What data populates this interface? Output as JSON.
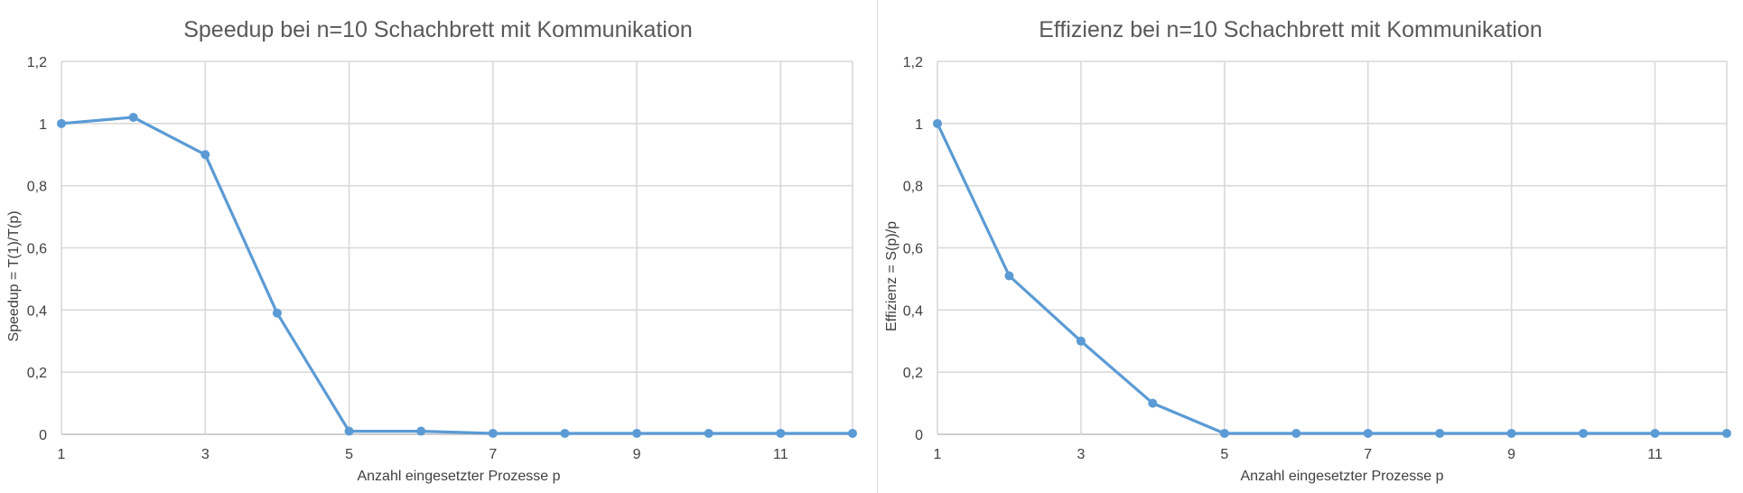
{
  "chart_data": [
    {
      "type": "line",
      "title": "Speedup bei n=10 Schachbrett mit Kommunikation",
      "xlabel": "Anzahl eingesetzter Prozesse p",
      "ylabel": "Speedup = T(1)/T(p)",
      "xlim": [
        1,
        12
      ],
      "ylim": [
        0,
        1.2
      ],
      "xticks": [
        "1",
        "3",
        "5",
        "7",
        "9",
        "11"
      ],
      "yticks": [
        "0",
        "0,2",
        "0,4",
        "0,6",
        "0,8",
        "1",
        "1,2"
      ],
      "grid": true,
      "legend": "none",
      "series": [
        {
          "color": "#5b9bd5",
          "x": [
            1,
            2,
            3,
            4,
            5,
            6,
            7,
            8,
            9,
            10,
            11,
            12
          ],
          "y": [
            1.0,
            1.02,
            0.9,
            0.39,
            0.01,
            0.01,
            0.003,
            0.003,
            0.003,
            0.003,
            0.003,
            0.003
          ]
        }
      ]
    },
    {
      "type": "line",
      "title": "Effizienz bei n=10 Schachbrett mit Kommunikation",
      "xlabel": "Anzahl eingesetzter Prozesse p",
      "ylabel": "Effizienz = S(p)/p",
      "xlim": [
        1,
        12
      ],
      "ylim": [
        0,
        1.2
      ],
      "xticks": [
        "1",
        "3",
        "5",
        "7",
        "9",
        "11"
      ],
      "yticks": [
        "0",
        "0,2",
        "0,4",
        "0,6",
        "0,8",
        "1",
        "1,2"
      ],
      "grid": true,
      "legend": "none",
      "series": [
        {
          "color": "#5b9bd5",
          "x": [
            1,
            2,
            3,
            4,
            5,
            6,
            7,
            8,
            9,
            10,
            11,
            12
          ],
          "y": [
            1.0,
            0.51,
            0.3,
            0.1,
            0.003,
            0.003,
            0.003,
            0.003,
            0.003,
            0.003,
            0.003,
            0.003
          ]
        }
      ]
    }
  ]
}
